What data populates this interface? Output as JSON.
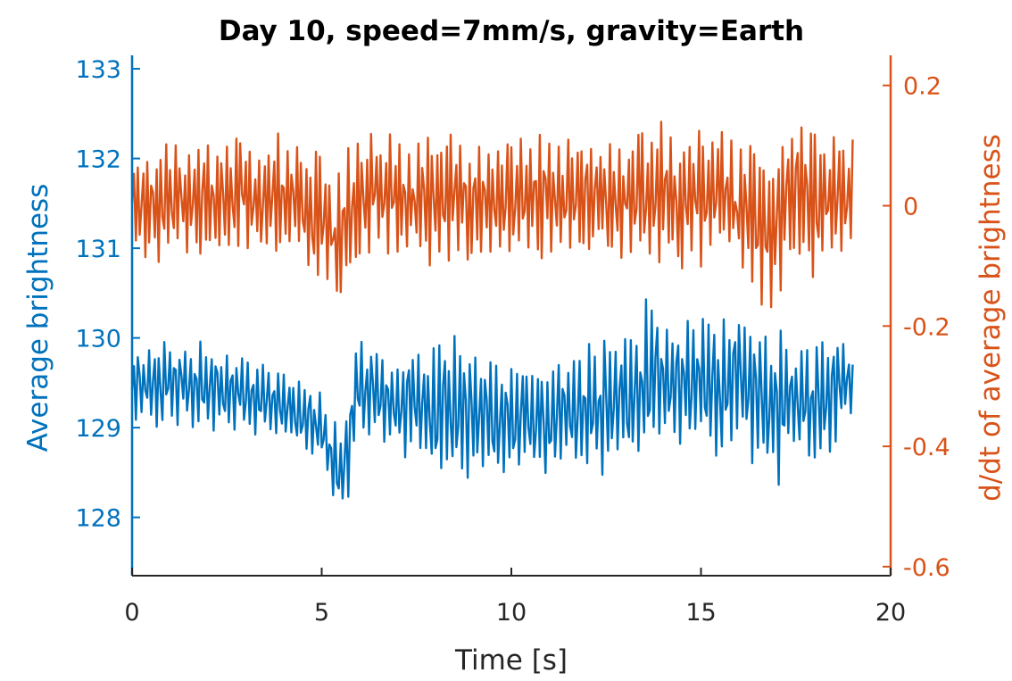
{
  "chart_data": {
    "type": "line",
    "title": "Day 10, speed=7mm/s, gravity=Earth",
    "xlabel": "Time [s]",
    "ylabel_left": "Average brightness",
    "ylabel_right": "d/dt of average brightness",
    "xlim": [
      0,
      20
    ],
    "ylim_left": [
      127.35,
      133.15
    ],
    "ylim_right": [
      -0.615,
      0.25
    ],
    "x_ticks": [
      "0",
      "5",
      "10",
      "15",
      "20"
    ],
    "y_left_ticks": [
      "128",
      "129",
      "130",
      "131",
      "132",
      "133"
    ],
    "y_right_ticks": [
      "-0.6",
      "-0.4",
      "-0.2",
      "0",
      "0.2"
    ],
    "grid": false,
    "colors": {
      "left": "#0072BD",
      "right": "#D95319"
    },
    "series": [
      {
        "axis": "left",
        "x_start": 0,
        "x_end": 19.0,
        "envelope_x": [
          0,
          1,
          2,
          3,
          4,
          5,
          5.5,
          6,
          7,
          8,
          9,
          10,
          11,
          12,
          13,
          13.8,
          14,
          15,
          16,
          16.9,
          17.5,
          18,
          19
        ],
        "envelope_upper": [
          129.9,
          130.0,
          129.95,
          129.9,
          129.7,
          129.4,
          129.0,
          130.1,
          129.8,
          130.2,
          129.9,
          129.8,
          129.8,
          130.0,
          130.1,
          130.65,
          130.2,
          130.4,
          130.2,
          130.3,
          129.8,
          130.2,
          130.0
        ],
        "envelope_lower": [
          128.95,
          129.0,
          128.9,
          128.9,
          128.8,
          128.55,
          127.85,
          128.8,
          128.7,
          128.3,
          128.4,
          128.35,
          128.35,
          128.4,
          128.5,
          128.6,
          128.8,
          128.5,
          128.8,
          128.15,
          128.9,
          128.4,
          129.2
        ],
        "values_approx": "oscillating series, roughly 0.5–1.0 brightness units peak-to-peak"
      },
      {
        "axis": "right",
        "x_start": 0,
        "x_end": 19.0,
        "envelope_x": [
          0,
          2,
          4,
          5.5,
          6,
          8,
          10,
          12,
          14,
          16,
          16.9,
          17.3,
          18,
          19
        ],
        "envelope_upper": [
          0.1,
          0.12,
          0.12,
          0.09,
          0.13,
          0.12,
          0.12,
          0.12,
          0.14,
          0.12,
          0.12,
          0.16,
          0.15,
          0.11
        ],
        "envelope_lower": [
          -0.09,
          -0.1,
          -0.09,
          -0.18,
          -0.09,
          -0.1,
          -0.1,
          -0.1,
          -0.11,
          -0.1,
          -0.21,
          -0.1,
          -0.12,
          -0.08
        ],
        "values_approx": "derivative oscillating around 0 with amplitude about ±0.1"
      }
    ]
  }
}
